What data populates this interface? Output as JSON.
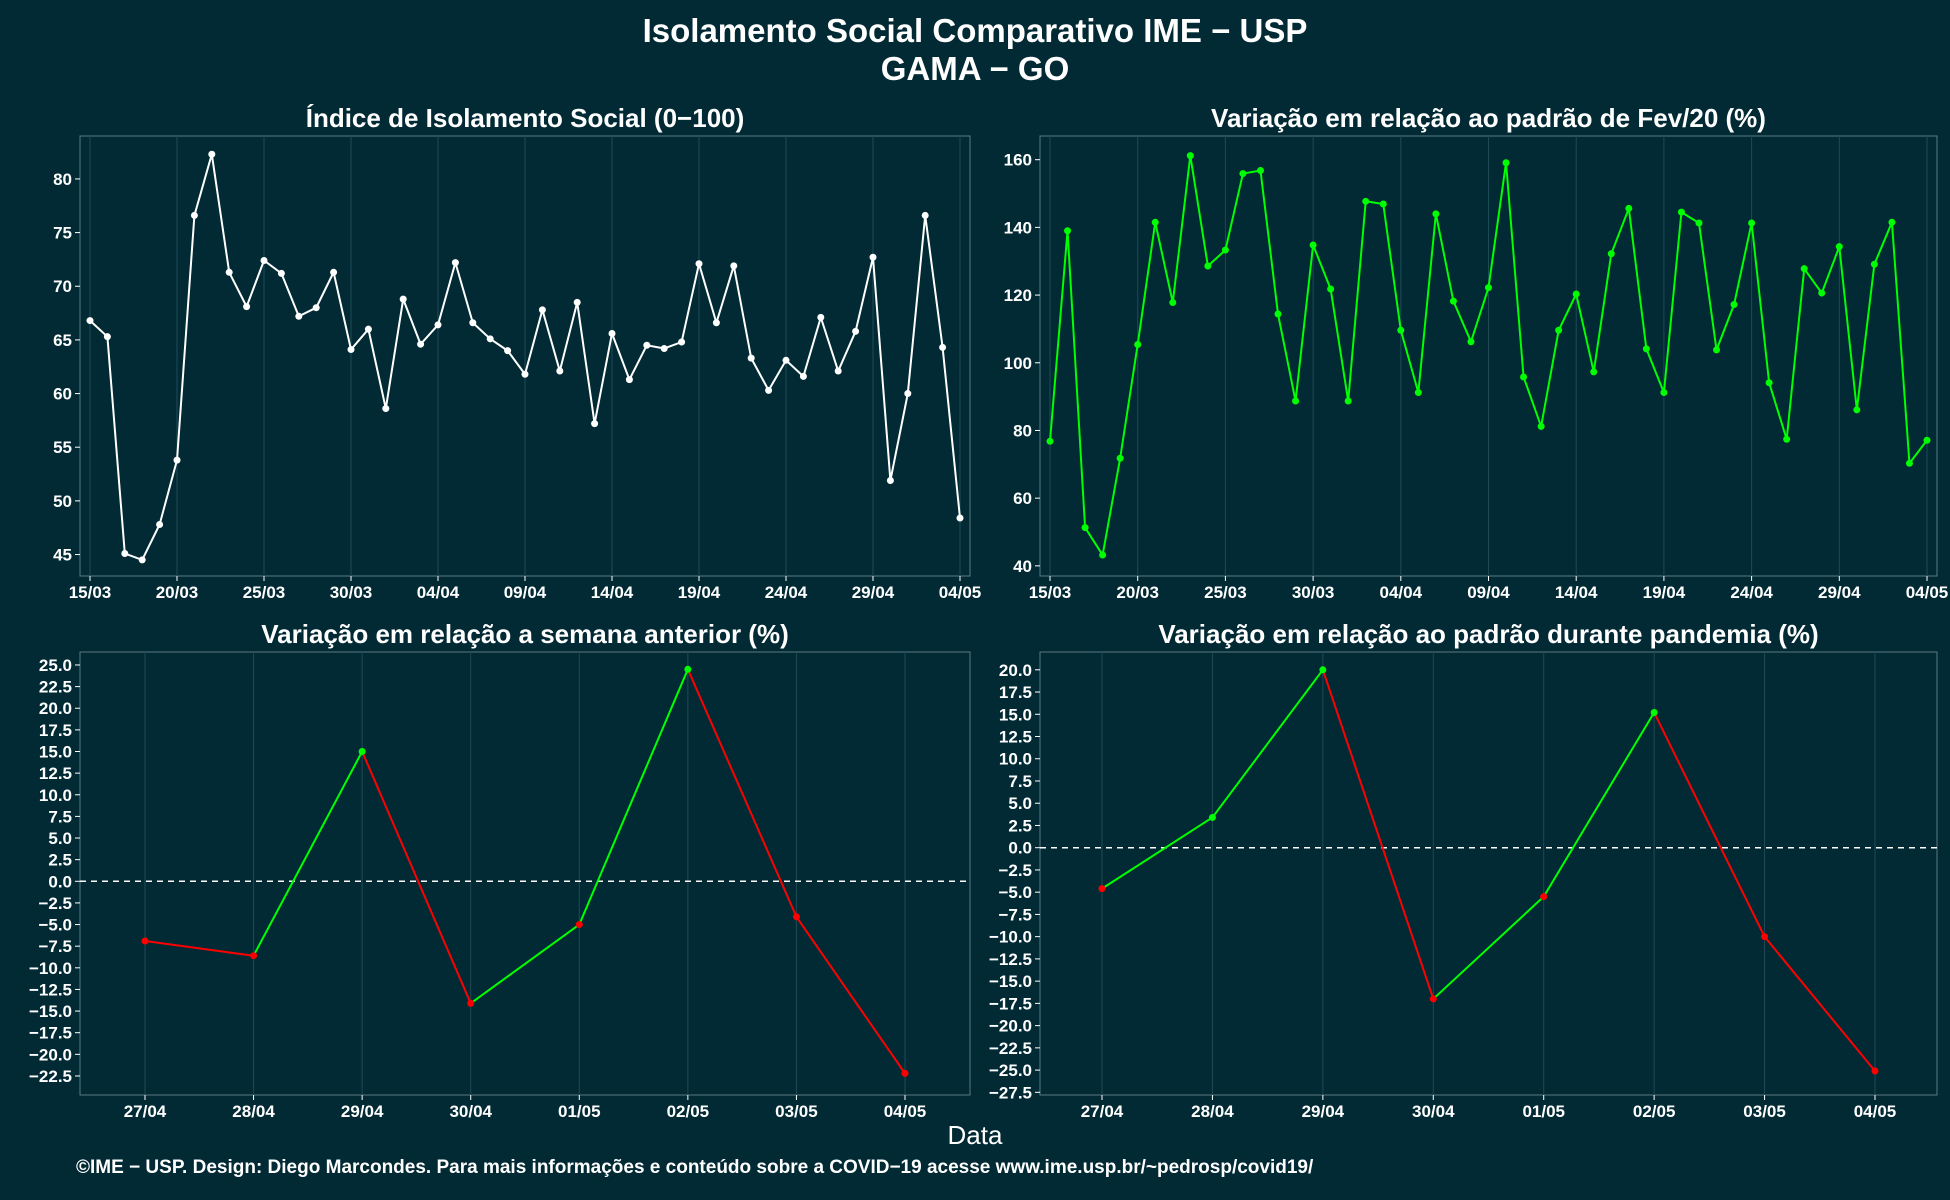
{
  "header": {
    "title_line1": "Isolamento Social Comparativo IME − USP",
    "title_line2": "GAMA − GO"
  },
  "xlabel": "Data",
  "footer": "©IME − USP. Design: Diego Marcondes. Para mais informações e conteúdo sobre a COVID−19 acesse www.ime.usp.br/~pedrosp/covid19/",
  "colors": {
    "background": "#022a35",
    "white_series": "#ffffff",
    "green_series": "#00ff00",
    "positive": "#00ff00",
    "negative": "#ff0000",
    "grid": "#1e4a55"
  },
  "chart_data": [
    {
      "id": "p1",
      "type": "line",
      "title": "Índice de Isolamento Social (0−100)",
      "x_start": "15/03",
      "x_count": 51,
      "xticks": [
        {
          "i": 0,
          "label": "15/03"
        },
        {
          "i": 5,
          "label": "20/03"
        },
        {
          "i": 10,
          "label": "25/03"
        },
        {
          "i": 15,
          "label": "30/03"
        },
        {
          "i": 20,
          "label": "04/04"
        },
        {
          "i": 25,
          "label": "09/04"
        },
        {
          "i": 30,
          "label": "14/04"
        },
        {
          "i": 35,
          "label": "19/04"
        },
        {
          "i": 40,
          "label": "24/04"
        },
        {
          "i": 45,
          "label": "29/04"
        },
        {
          "i": 50,
          "label": "04/05"
        }
      ],
      "ylim": [
        43,
        84
      ],
      "yticks": [
        45,
        50,
        55,
        60,
        65,
        70,
        75,
        80
      ],
      "color": "#ffffff",
      "values": [
        66.8,
        65.3,
        45.1,
        44.5,
        47.8,
        53.8,
        76.6,
        82.3,
        71.3,
        68.1,
        72.4,
        71.2,
        67.2,
        68.0,
        71.3,
        64.1,
        66.0,
        58.6,
        68.8,
        64.6,
        66.4,
        72.2,
        66.6,
        65.1,
        64.0,
        61.8,
        67.8,
        62.1,
        68.5,
        57.2,
        65.6,
        61.3,
        64.5,
        64.2,
        64.8,
        72.1,
        66.6,
        71.9,
        63.3,
        60.3,
        63.1,
        61.6,
        67.1,
        62.1,
        65.8,
        72.7,
        51.9,
        60.0,
        76.6,
        64.3,
        48.4
      ]
    },
    {
      "id": "p2",
      "type": "line",
      "title": "Variação em relação ao padrão de Fev/20 (%)",
      "x_start": "15/03",
      "x_count": 51,
      "xticks": [
        {
          "i": 0,
          "label": "15/03"
        },
        {
          "i": 5,
          "label": "20/03"
        },
        {
          "i": 10,
          "label": "25/03"
        },
        {
          "i": 15,
          "label": "30/03"
        },
        {
          "i": 20,
          "label": "04/04"
        },
        {
          "i": 25,
          "label": "09/04"
        },
        {
          "i": 30,
          "label": "14/04"
        },
        {
          "i": 35,
          "label": "19/04"
        },
        {
          "i": 40,
          "label": "24/04"
        },
        {
          "i": 45,
          "label": "29/04"
        },
        {
          "i": 50,
          "label": "04/05"
        }
      ],
      "ylim": [
        37,
        167
      ],
      "yticks": [
        40,
        60,
        80,
        100,
        120,
        140,
        160
      ],
      "color": "#00ff00",
      "values": [
        76.8,
        139.0,
        51.3,
        43.2,
        71.8,
        105.4,
        141.5,
        117.8,
        161.2,
        128.6,
        133.3,
        155.9,
        156.8,
        114.4,
        88.7,
        134.8,
        121.8,
        88.7,
        147.7,
        146.9,
        109.6,
        91.2,
        144.0,
        118.2,
        106.2,
        122.2,
        159.1,
        95.8,
        81.2,
        109.6,
        120.3,
        97.3,
        132.2,
        145.6,
        104.1,
        91.2,
        144.5,
        141.3,
        103.8,
        117.2,
        141.3,
        94.1,
        77.4,
        127.8,
        120.6,
        134.3,
        86.1,
        129.1,
        141.5,
        70.3,
        77.1
      ]
    },
    {
      "id": "p3",
      "type": "line",
      "title": "Variação em relação a semana anterior (%)",
      "categories": [
        "27/04",
        "28/04",
        "29/04",
        "30/04",
        "01/05",
        "02/05",
        "03/05",
        "04/05"
      ],
      "values": [
        -6.9,
        -8.6,
        15.0,
        -14.1,
        -5.0,
        24.5,
        -4.1,
        -22.2
      ],
      "ylim": [
        -24.7,
        26.5
      ],
      "yticks": [
        -22.5,
        -20.0,
        -17.5,
        -15.0,
        -12.5,
        -10.0,
        -7.5,
        -5.0,
        -2.5,
        0.0,
        2.5,
        5.0,
        7.5,
        10.0,
        12.5,
        15.0,
        17.5,
        20.0,
        22.5,
        25.0
      ],
      "reference_line": 0,
      "positive_color": "#00ff00",
      "negative_color": "#ff0000"
    },
    {
      "id": "p4",
      "type": "line",
      "title": "Variação em relação ao padrão durante pandemia (%)",
      "categories": [
        "27/04",
        "28/04",
        "29/04",
        "30/04",
        "01/05",
        "02/05",
        "03/05",
        "04/05"
      ],
      "values": [
        -4.6,
        3.4,
        20.0,
        -17.0,
        -5.5,
        15.2,
        -10.0,
        -25.1
      ],
      "ylim": [
        -27.8,
        22.0
      ],
      "yticks": [
        -27.5,
        -25.0,
        -22.5,
        -20.0,
        -17.5,
        -15.0,
        -12.5,
        -10.0,
        -7.5,
        -5.0,
        -2.5,
        0.0,
        2.5,
        5.0,
        7.5,
        10.0,
        12.5,
        15.0,
        17.5,
        20.0
      ],
      "reference_line": 0,
      "positive_color": "#00ff00",
      "negative_color": "#ff0000"
    }
  ]
}
